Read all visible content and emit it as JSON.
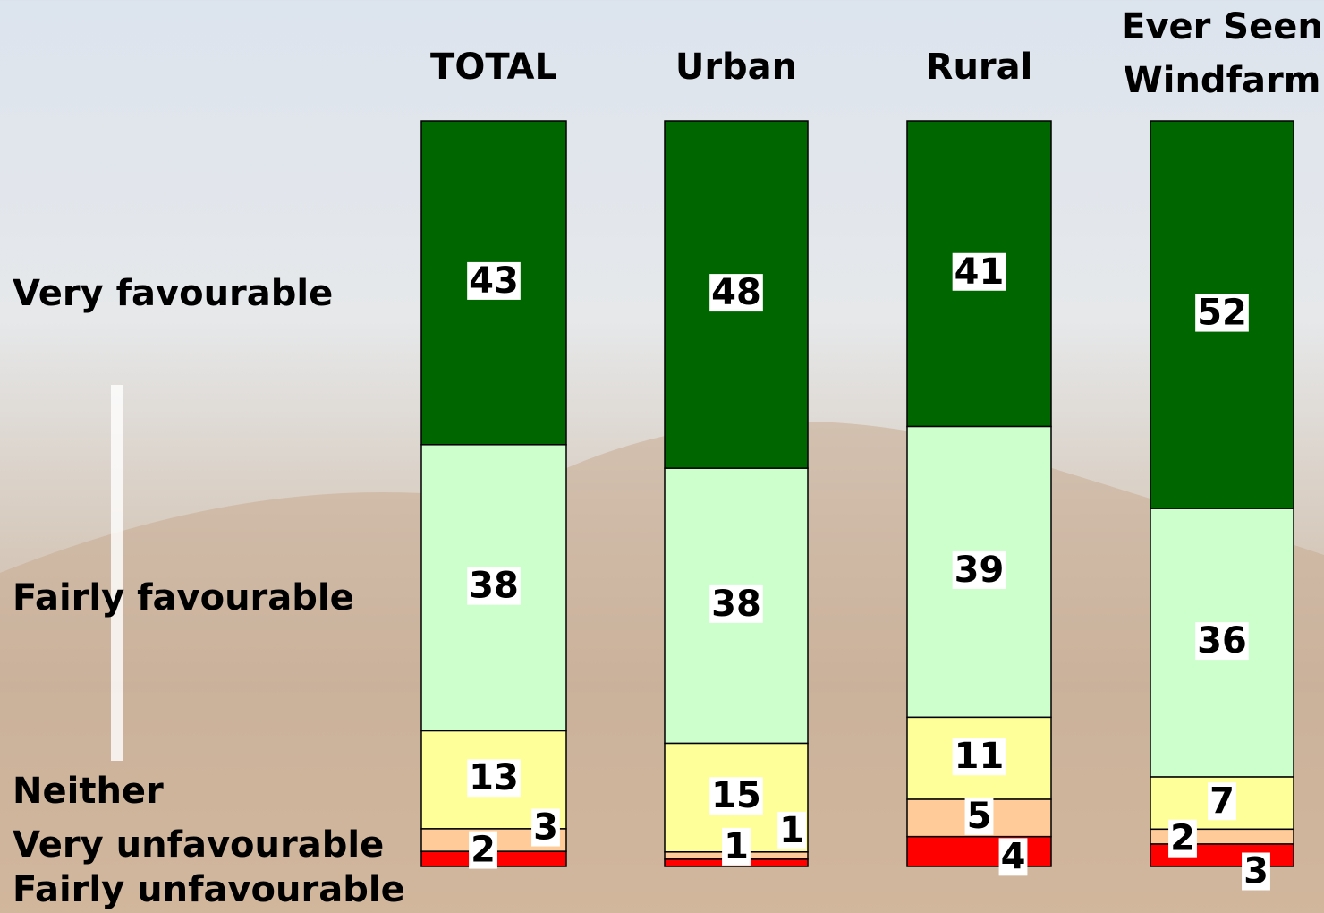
{
  "chart_data": {
    "type": "stacked_bar_100",
    "categories": [
      "TOTAL",
      "Urban",
      "Rural",
      "Ever Seen Windfarm"
    ],
    "series": [
      {
        "name": "Very favourable",
        "color": "#006600",
        "values": [
          43,
          48,
          41,
          52
        ]
      },
      {
        "name": "Fairly favourable",
        "color": "#ccffcc",
        "values": [
          38,
          38,
          39,
          36
        ]
      },
      {
        "name": "Neither",
        "color": "#ffff99",
        "values": [
          13,
          15,
          11,
          7
        ]
      },
      {
        "name": "Very unfavourable",
        "color": "#ffcc99",
        "values": [
          3,
          1,
          5,
          2
        ]
      },
      {
        "name": "Fairly unfavourable",
        "color": "#ff0000",
        "values": [
          2,
          1,
          4,
          3
        ]
      }
    ]
  }
}
